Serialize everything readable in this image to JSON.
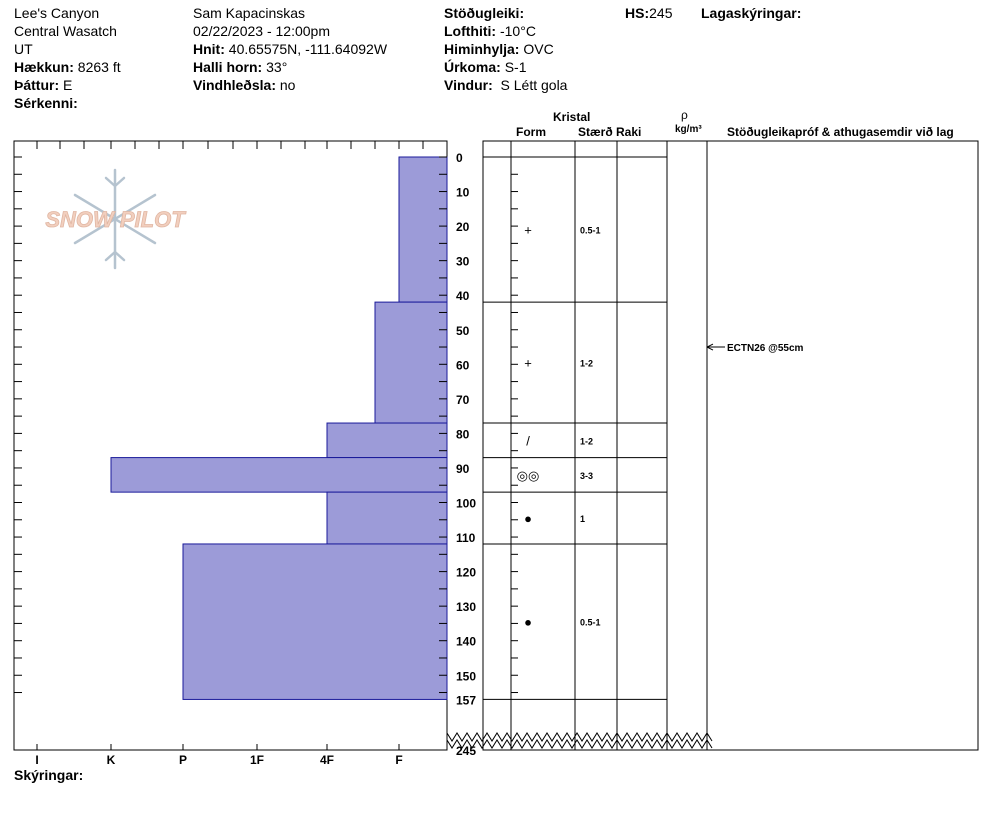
{
  "header": {
    "col1": [
      "Lee's Canyon",
      "Central Wasatch",
      "UT"
    ],
    "elevation_label": "Hækkun:",
    "elevation_value": "8263 ft",
    "aspect_label": "Þáttur:",
    "aspect_value": "E",
    "features_label": "Sérkenni:",
    "observer": "Sam Kapacinskas",
    "datetime": "02/22/2023 - 12:00pm",
    "coords_label": "Hnit:",
    "coords_value": "40.65575N, -111.64092W",
    "slope_label": "Halli horn:",
    "slope_value": "33°",
    "wind_loading_label": "Vindhleðsla:",
    "wind_loading_value": "no",
    "stability_label": "Stöðugleiki:",
    "air_temp_label": "Lofthiti:",
    "air_temp_value": "-10°C",
    "sky_label": "Himinhylja:",
    "sky_value": "OVC",
    "precip_label": "Úrkoma:",
    "precip_value": "S-1",
    "wind_label": "Vindur:",
    "wind_value": "S Létt gola",
    "hs_label": "HS:",
    "hs_value": "245",
    "layer_notes_label": "Lagaskýringar:"
  },
  "logo_text": "SNOW PILOT",
  "table_headers": {
    "crystal": "Kristal",
    "form": "Form",
    "size": "Stærð",
    "moisture": "Raki",
    "rho": "ρ",
    "density_unit": "kg/m³",
    "tests": "Stöðugleikapróf & athugasemdir við lag"
  },
  "footer_label": "Skýringar:",
  "test_annotation": "ECTN26 @55cm",
  "chart_data": {
    "type": "bar",
    "hardness_ticks": [
      "I",
      "K",
      "P",
      "1F",
      "4F",
      "F"
    ],
    "depth_ticks": [
      0,
      10,
      20,
      30,
      40,
      50,
      60,
      70,
      80,
      90,
      100,
      110,
      120,
      130,
      140,
      150,
      157
    ],
    "depth_bottom_label": "245",
    "layers": [
      {
        "top": 0,
        "bottom": 42,
        "hardness": "F",
        "form": "+",
        "size": "0.5-1"
      },
      {
        "top": 42,
        "bottom": 77,
        "hardness": "4F-",
        "form": "+",
        "size": "1-2"
      },
      {
        "top": 77,
        "bottom": 87,
        "hardness": "4F",
        "form": "/",
        "size": "1-2"
      },
      {
        "top": 87,
        "bottom": 97,
        "hardness": "K",
        "form": "◎◎",
        "size": "3-3"
      },
      {
        "top": 97,
        "bottom": 112,
        "hardness": "4F",
        "form": "●",
        "size": "1"
      },
      {
        "top": 112,
        "bottom": 157,
        "hardness": "P",
        "form": "●",
        "size": "0.5-1"
      }
    ],
    "test_depth": 55,
    "colors": {
      "bar_fill": "#9c9bd8",
      "bar_stroke": "#1a1a9a"
    }
  }
}
